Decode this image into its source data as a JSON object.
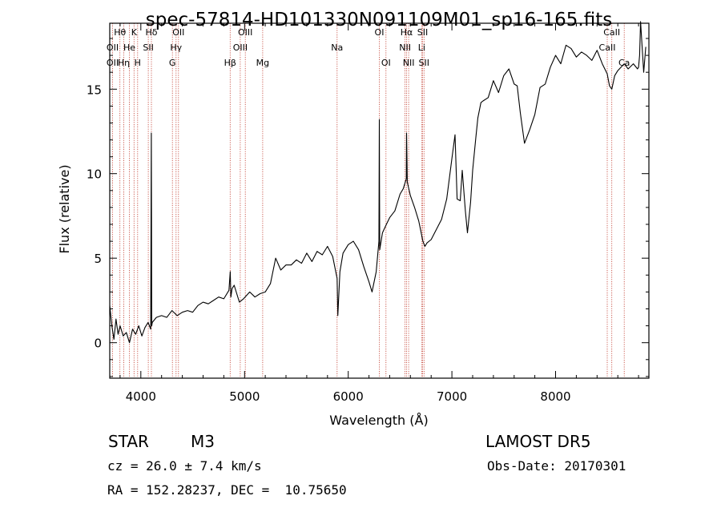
{
  "chart_data": {
    "type": "line",
    "title": "spec-57814-HD101330N091109M01_sp16-165.fits",
    "xlabel": "Wavelength (Å)",
    "ylabel": "Flux (relative)",
    "xlim": [
      3700,
      8900
    ],
    "ylim": [
      -2.1,
      18.9
    ],
    "xticks": [
      4000,
      5000,
      6000,
      7000,
      8000
    ],
    "yticks": [
      0,
      5,
      10,
      15
    ],
    "grid": false,
    "series": [
      {
        "x": [
          3700,
          3720,
          3740,
          3760,
          3780,
          3800,
          3830,
          3860,
          3890,
          3920,
          3950,
          3980,
          4010,
          4040,
          4070,
          4095,
          4101,
          4105,
          4110,
          4150,
          4200,
          4250,
          4300,
          4350,
          4400,
          4450,
          4500,
          4550,
          4600,
          4650,
          4700,
          4750,
          4800,
          4850,
          4862,
          4868,
          4880,
          4900,
          4950,
          4990,
          5050,
          5100,
          5150,
          5200,
          5250,
          5300,
          5350,
          5400,
          5450,
          5500,
          5550,
          5600,
          5650,
          5700,
          5750,
          5800,
          5850,
          5893,
          5900,
          5920,
          5950,
          6000,
          6050,
          6100,
          6150,
          6200,
          6230,
          6270,
          6296,
          6300,
          6304,
          6330,
          6360,
          6400,
          6450,
          6500,
          6530,
          6560,
          6563,
          6570,
          6600,
          6640,
          6680,
          6720,
          6740,
          6760,
          6800,
          6850,
          6900,
          6950,
          7000,
          7030,
          7050,
          7080,
          7100,
          7130,
          7150,
          7180,
          7200,
          7230,
          7250,
          7280,
          7300,
          7350,
          7400,
          7450,
          7500,
          7550,
          7600,
          7630,
          7660,
          7700,
          7750,
          7800,
          7850,
          7900,
          7950,
          8000,
          8050,
          8100,
          8150,
          8200,
          8250,
          8300,
          8350,
          8400,
          8450,
          8498,
          8520,
          8542,
          8570,
          8600,
          8662,
          8700,
          8750,
          8790,
          8800,
          8810,
          8820,
          8850,
          8870
        ],
        "y": [
          2.2,
          1.0,
          0.2,
          1.4,
          0.5,
          1.0,
          0.4,
          0.6,
          0.0,
          0.8,
          0.5,
          1.0,
          0.4,
          0.9,
          1.2,
          0.8,
          12.4,
          1.0,
          1.2,
          1.5,
          1.6,
          1.5,
          1.9,
          1.6,
          1.8,
          1.9,
          1.8,
          2.2,
          2.4,
          2.3,
          2.5,
          2.7,
          2.6,
          3.1,
          4.2,
          2.7,
          3.2,
          3.4,
          2.4,
          2.6,
          3.0,
          2.7,
          2.9,
          3.0,
          3.5,
          5.0,
          4.3,
          4.6,
          4.6,
          4.9,
          4.7,
          5.3,
          4.8,
          5.4,
          5.2,
          5.7,
          5.1,
          3.8,
          1.6,
          4.2,
          5.3,
          5.8,
          6.0,
          5.5,
          4.5,
          3.6,
          3.0,
          4.2,
          6.0,
          13.2,
          5.5,
          6.5,
          6.9,
          7.4,
          7.8,
          8.8,
          9.1,
          9.7,
          12.4,
          9.5,
          8.7,
          8.0,
          7.2,
          6.0,
          5.7,
          5.9,
          6.1,
          6.7,
          7.3,
          8.5,
          10.9,
          12.3,
          8.5,
          8.4,
          10.2,
          7.8,
          6.5,
          8.3,
          10.2,
          12.1,
          13.3,
          14.2,
          14.3,
          14.5,
          15.5,
          14.8,
          15.8,
          16.2,
          15.3,
          15.2,
          13.6,
          11.8,
          12.6,
          13.5,
          15.1,
          15.3,
          16.3,
          17.0,
          16.5,
          17.6,
          17.4,
          16.9,
          17.2,
          17.0,
          16.7,
          17.3,
          16.5,
          15.9,
          15.2,
          15.0,
          15.8,
          16.1,
          16.5,
          16.2,
          16.5,
          16.2,
          16.3,
          17.0,
          19.0,
          16.0,
          17.5
        ]
      }
    ],
    "lines": [
      {
        "label": "Hθ",
        "row": 0,
        "lambda": 3798
      },
      {
        "label": "K",
        "row": 0,
        "lambda": 3934
      },
      {
        "label": "Hδ",
        "row": 0,
        "lambda": 4102
      },
      {
        "label": "OII",
        "row": 0,
        "lambda": 4363
      },
      {
        "label": "OIII",
        "row": 0,
        "lambda": 5007
      },
      {
        "label": "OI",
        "row": 0,
        "lambda": 6300
      },
      {
        "label": "Hα",
        "row": 0,
        "lambda": 6563
      },
      {
        "label": "SII",
        "row": 0,
        "lambda": 6717
      },
      {
        "label": "CaII",
        "row": 0,
        "lambda": 8542
      },
      {
        "label": "OII",
        "row": 1,
        "lambda": 3727
      },
      {
        "label": "He",
        "row": 1,
        "lambda": 3889
      },
      {
        "label": "SII",
        "row": 1,
        "lambda": 4072
      },
      {
        "label": "Hγ",
        "row": 1,
        "lambda": 4340
      },
      {
        "label": "OIII",
        "row": 1,
        "lambda": 4959
      },
      {
        "label": "Na",
        "row": 1,
        "lambda": 5893
      },
      {
        "label": "NII",
        "row": 1,
        "lambda": 6548
      },
      {
        "label": "Li",
        "row": 1,
        "lambda": 6708
      },
      {
        "label": "CaII",
        "row": 1,
        "lambda": 8498
      },
      {
        "label": "OII",
        "row": 2,
        "lambda": 3727
      },
      {
        "label": "Hη",
        "row": 2,
        "lambda": 3835
      },
      {
        "label": "H",
        "row": 2,
        "lambda": 3969
      },
      {
        "label": "G",
        "row": 2,
        "lambda": 4304
      },
      {
        "label": "Hβ",
        "row": 2,
        "lambda": 4861
      },
      {
        "label": "Mg",
        "row": 2,
        "lambda": 5175
      },
      {
        "label": "OI",
        "row": 2,
        "lambda": 6364
      },
      {
        "label": "NII",
        "row": 2,
        "lambda": 6583
      },
      {
        "label": "SII",
        "row": 2,
        "lambda": 6731
      },
      {
        "label": "Ca",
        "row": 2,
        "lambda": 8662
      }
    ],
    "markers": [
      3727,
      3798,
      3835,
      3889,
      3934,
      3969,
      4072,
      4102,
      4304,
      4340,
      4363,
      4861,
      4959,
      5007,
      5175,
      5893,
      6300,
      6364,
      6548,
      6563,
      6583,
      6708,
      6717,
      6731,
      8498,
      8542,
      8662
    ]
  },
  "info": {
    "object_class": "STAR",
    "subclass": "M3",
    "survey": "LAMOST DR5",
    "cz": "cz = 26.0 ± 7.4 km/s",
    "obs_date": "Obs-Date: 20170301",
    "coords": "RA = 152.28237, DEC =  10.75650"
  }
}
